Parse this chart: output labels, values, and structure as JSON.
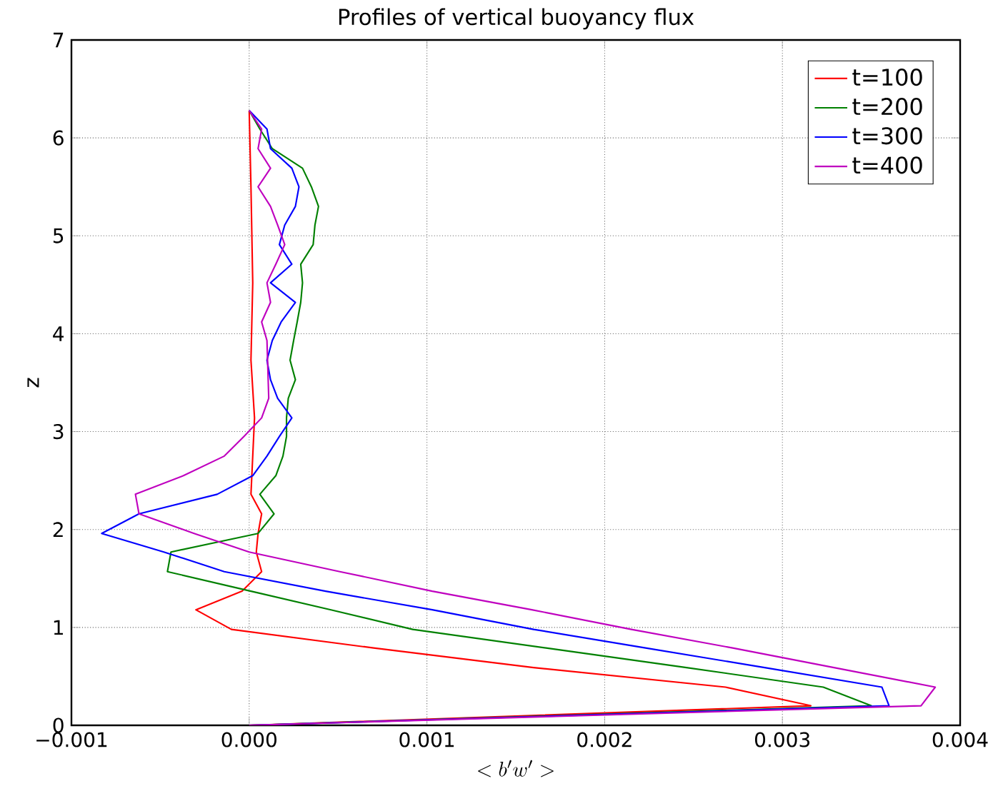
{
  "chart_data": {
    "type": "line",
    "title": "Profiles of vertical buoyancy flux",
    "xlabel": "<b'w'>",
    "ylabel": "z",
    "xlim": [
      -0.001,
      0.004
    ],
    "xticks": [
      {
        "value": -0.001,
        "label": "−0.001"
      },
      {
        "value": 0,
        "label": "0.000"
      },
      {
        "value": 0.001,
        "label": "0.001"
      },
      {
        "value": 0.002,
        "label": "0.002"
      },
      {
        "value": 0.003,
        "label": "0.003"
      },
      {
        "value": 0.004,
        "label": "0.004"
      }
    ],
    "ylim": [
      0,
      7
    ],
    "yticks": [
      0,
      1,
      2,
      3,
      4,
      5,
      6,
      7
    ],
    "grid": true,
    "legend": "top right",
    "line_style": "solid",
    "marker": "none",
    "series": [
      {
        "name": "t=100",
        "color": "#ff0000",
        "x": [
          0,
          0.00316,
          0.00268,
          0.0016,
          0.0007,
          -0.0001,
          -0.0003,
          -4e-05,
          7e-05,
          4e-05,
          5e-05,
          7e-05,
          1e-05,
          3e-05,
          1e-05,
          2e-05,
          1e-05,
          0
        ],
        "values": [
          0,
          0.2,
          0.39,
          0.59,
          0.79,
          0.98,
          1.18,
          1.37,
          1.57,
          1.77,
          1.96,
          2.16,
          2.36,
          3.14,
          3.73,
          4.52,
          5.5,
          6.28
        ]
      },
      {
        "name": "t=200",
        "color": "#008000",
        "x": [
          0,
          0.0035,
          0.00323,
          0.00246,
          0.00167,
          0.00092,
          0.00046,
          1e-05,
          -0.00046,
          -0.00044,
          5e-05,
          0.00014,
          6e-05,
          0.00015,
          0.00019,
          0.00021,
          0.00021,
          0.00022,
          0.00026,
          0.00023,
          0.00025,
          0.00027,
          0.00029,
          0.0003,
          0.00029,
          0.00036,
          0.00037,
          0.00039,
          0.00035,
          0.0003,
          0.00013,
          6e-05,
          0
        ],
        "values": [
          0,
          0.2,
          0.39,
          0.59,
          0.79,
          0.98,
          1.18,
          1.37,
          1.57,
          1.77,
          1.96,
          2.16,
          2.36,
          2.55,
          2.75,
          2.95,
          3.14,
          3.34,
          3.53,
          3.73,
          3.93,
          4.12,
          4.32,
          4.52,
          4.71,
          4.91,
          5.11,
          5.3,
          5.5,
          5.69,
          5.89,
          6.09,
          6.28
        ]
      },
      {
        "name": "t=300",
        "color": "#0000ff",
        "x": [
          0,
          0.0036,
          0.00356,
          0.0029,
          0.00223,
          0.0016,
          0.00103,
          0.00043,
          -0.00014,
          -0.00048,
          -0.00083,
          -0.00062,
          -0.00018,
          2e-05,
          0.0001,
          0.00017,
          0.00024,
          0.00016,
          0.00012,
          0.0001,
          0.00013,
          0.00018,
          0.00026,
          0.00012,
          0.00024,
          0.00017,
          0.0002,
          0.00026,
          0.00028,
          0.00024,
          0.00012,
          0.0001,
          0
        ],
        "values": [
          0,
          0.2,
          0.39,
          0.59,
          0.79,
          0.98,
          1.18,
          1.37,
          1.57,
          1.77,
          1.96,
          2.16,
          2.36,
          2.55,
          2.75,
          2.95,
          3.14,
          3.34,
          3.53,
          3.73,
          3.93,
          4.12,
          4.32,
          4.52,
          4.71,
          4.91,
          5.11,
          5.3,
          5.5,
          5.69,
          5.89,
          6.09,
          6.28
        ]
      },
      {
        "name": "t=400",
        "color": "#bf00bf",
        "x": [
          0,
          0.00378,
          0.00386,
          0.00329,
          0.00272,
          0.00215,
          0.00159,
          0.00103,
          0.00051,
          0.0,
          -0.00031,
          -0.00062,
          -0.00064,
          -0.00037,
          -0.00014,
          -3e-05,
          7e-05,
          0.00011,
          0.0001,
          7e-05,
          0.00012,
          0.0001,
          0.00015,
          0.0002,
          0.00016,
          0.00012,
          5e-05,
          0.00012,
          5e-05,
          7e-05,
          0
        ],
        "values": [
          0,
          0.2,
          0.39,
          0.59,
          0.79,
          0.98,
          1.18,
          1.37,
          1.57,
          1.77,
          1.96,
          2.16,
          2.36,
          2.55,
          2.75,
          2.95,
          3.14,
          3.34,
          3.93,
          4.12,
          4.32,
          4.52,
          4.71,
          4.91,
          5.11,
          5.3,
          5.5,
          5.69,
          5.89,
          6.09,
          6.28
        ]
      }
    ]
  }
}
